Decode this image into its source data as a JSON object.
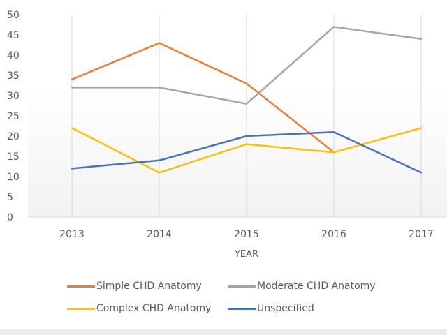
{
  "chart_data": {
    "type": "line",
    "title": "",
    "xlabel": "YEAR",
    "ylabel": "",
    "categories": [
      "2013",
      "2014",
      "2015",
      "2016",
      "2017"
    ],
    "ylim": [
      0,
      50
    ],
    "yticks": [
      0,
      5,
      10,
      15,
      20,
      25,
      30,
      35,
      40,
      45,
      50
    ],
    "grid": "vertical",
    "legend_position": "bottom",
    "series": [
      {
        "name": "Simple CHD Anatomy",
        "color": "#ED7D31",
        "values": [
          34,
          43,
          33,
          16,
          null
        ]
      },
      {
        "name": "Moderate CHD Anatomy",
        "color": "#A5A5A5",
        "values": [
          32,
          32,
          28,
          47,
          44
        ]
      },
      {
        "name": "Complex CHD Anatomy",
        "color": "#FFC000",
        "values": [
          22,
          11,
          18,
          16,
          22
        ]
      },
      {
        "name": "Unspecified",
        "color": "#4472C4",
        "values": [
          12,
          14,
          20,
          21,
          11
        ]
      }
    ]
  }
}
